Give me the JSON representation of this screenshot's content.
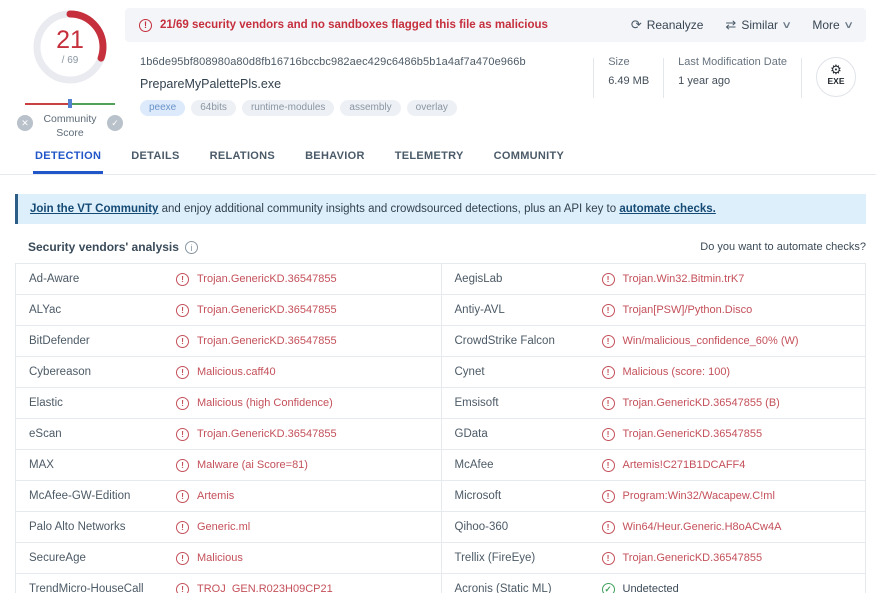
{
  "header": {
    "score": {
      "value": "21",
      "total": "/ 69"
    },
    "community_label": "Community Score",
    "banner_message": "21/69 security vendors and no sandboxes flagged this file as malicious",
    "actions": {
      "reanalyze": "Reanalyze",
      "similar": "Similar",
      "more": "More"
    },
    "file": {
      "hash": "1b6de95bf808980a80d8fb16716bccbc982aec429c6486b5b1a4af7a470e966b",
      "name": "PrepareMyPalettePls.exe",
      "tags": [
        {
          "label": "peexe",
          "highlight": true
        },
        {
          "label": "64bits",
          "highlight": false
        },
        {
          "label": "runtime-modules",
          "highlight": false
        },
        {
          "label": "assembly",
          "highlight": false
        },
        {
          "label": "overlay",
          "highlight": false
        }
      ],
      "size_label": "Size",
      "size_value": "6.49 MB",
      "lmd_label": "Last Modification Date",
      "lmd_value": "1 year ago",
      "type_badge": "EXE"
    }
  },
  "tabs": [
    "DETECTION",
    "DETAILS",
    "RELATIONS",
    "BEHAVIOR",
    "TELEMETRY",
    "COMMUNITY"
  ],
  "active_tab": "DETECTION",
  "community_banner": {
    "link1": "Join the VT Community",
    "middle": " and enjoy additional community insights and crowdsourced detections, plus an API key to ",
    "link2": "automate checks."
  },
  "analysis": {
    "title": "Security vendors' analysis",
    "automate_question": "Do you want to automate checks?"
  },
  "detections": {
    "rows": [
      {
        "left": {
          "vendor": "Ad-Aware",
          "result": "Trojan.GenericKD.36547855",
          "status": "malicious"
        },
        "right": {
          "vendor": "AegisLab",
          "result": "Trojan.Win32.Bitmin.trK7",
          "status": "malicious"
        }
      },
      {
        "left": {
          "vendor": "ALYac",
          "result": "Trojan.GenericKD.36547855",
          "status": "malicious"
        },
        "right": {
          "vendor": "Antiy-AVL",
          "result": "Trojan[PSW]/Python.Disco",
          "status": "malicious"
        }
      },
      {
        "left": {
          "vendor": "BitDefender",
          "result": "Trojan.GenericKD.36547855",
          "status": "malicious"
        },
        "right": {
          "vendor": "CrowdStrike Falcon",
          "result": "Win/malicious_confidence_60% (W)",
          "status": "malicious"
        }
      },
      {
        "left": {
          "vendor": "Cybereason",
          "result": "Malicious.caff40",
          "status": "malicious"
        },
        "right": {
          "vendor": "Cynet",
          "result": "Malicious (score: 100)",
          "status": "malicious"
        }
      },
      {
        "left": {
          "vendor": "Elastic",
          "result": "Malicious (high Confidence)",
          "status": "malicious"
        },
        "right": {
          "vendor": "Emsisoft",
          "result": "Trojan.GenericKD.36547855 (B)",
          "status": "malicious"
        }
      },
      {
        "left": {
          "vendor": "eScan",
          "result": "Trojan.GenericKD.36547855",
          "status": "malicious"
        },
        "right": {
          "vendor": "GData",
          "result": "Trojan.GenericKD.36547855",
          "status": "malicious"
        }
      },
      {
        "left": {
          "vendor": "MAX",
          "result": "Malware (ai Score=81)",
          "status": "malicious"
        },
        "right": {
          "vendor": "McAfee",
          "result": "Artemis!C271B1DCAFF4",
          "status": "malicious"
        }
      },
      {
        "left": {
          "vendor": "McAfee-GW-Edition",
          "result": "Artemis",
          "status": "malicious"
        },
        "right": {
          "vendor": "Microsoft",
          "result": "Program:Win32/Wacapew.C!ml",
          "status": "malicious"
        }
      },
      {
        "left": {
          "vendor": "Palo Alto Networks",
          "result": "Generic.ml",
          "status": "malicious"
        },
        "right": {
          "vendor": "Qihoo-360",
          "result": "Win64/Heur.Generic.H8oACw4A",
          "status": "malicious"
        }
      },
      {
        "left": {
          "vendor": "SecureAge",
          "result": "Malicious",
          "status": "malicious"
        },
        "right": {
          "vendor": "Trellix (FireEye)",
          "result": "Trojan.GenericKD.36547855",
          "status": "malicious"
        }
      },
      {
        "left": {
          "vendor": "TrendMicro-HouseCall",
          "result": "TROJ_GEN.R023H09CP21",
          "status": "malicious"
        },
        "right": {
          "vendor": "Acronis (Static ML)",
          "result": "Undetected",
          "status": "undetected"
        }
      }
    ]
  },
  "icons": {
    "reanalyze": "⟳",
    "similar": "⇄",
    "chevron": "∨",
    "gear": "⚙",
    "close": "✕",
    "check": "✓",
    "exclamation": "!",
    "info": "i"
  },
  "colors": {
    "accent_blue": "#2156c8",
    "malicious_red": "#c4505a",
    "banner_red": "#c62f3d",
    "undetected_green": "#3fa15c",
    "strip_bg": "#f3f5f9",
    "community_banner_bg": "#ddeffb"
  }
}
